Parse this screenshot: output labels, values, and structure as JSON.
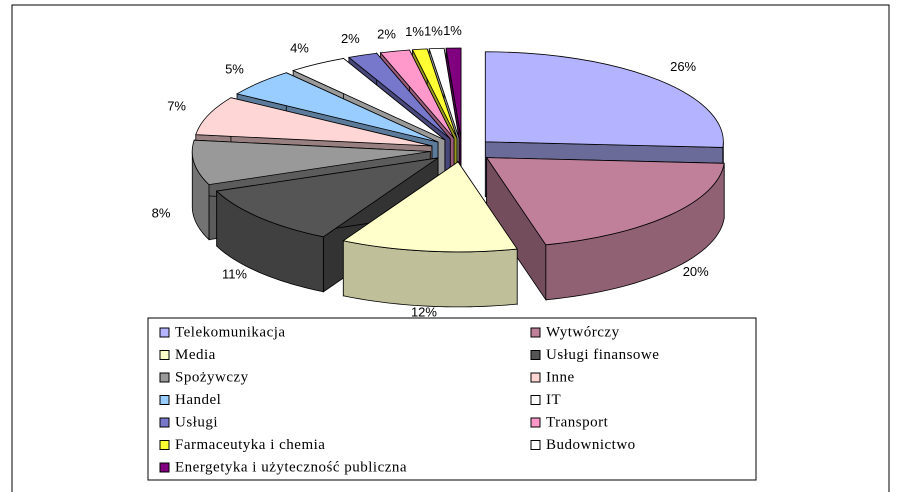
{
  "chart_data": {
    "type": "pie3d",
    "categories": [
      "Telekomunikacja",
      "Wytwórczy",
      "Media",
      "Usługi finansowe",
      "Spożywczy",
      "Inne",
      "Handel",
      "IT",
      "Usługi",
      "Transport",
      "Farmaceutyka i chemia",
      "Budownictwo",
      "Energetyka i użyteczność publiczna"
    ],
    "values": [
      26,
      20,
      12,
      11,
      8,
      7,
      5,
      4,
      2,
      2,
      1,
      1,
      1
    ],
    "value_labels": [
      "26%",
      "20%",
      "12%",
      "11%",
      "8%",
      "7%",
      "5%",
      "4%",
      "2%",
      "2%",
      "1%",
      "1%",
      "1%"
    ],
    "colors": [
      "#b3b3ff",
      "#c08099",
      "#ffffcc",
      "#555555",
      "#999999",
      "#ffd6d6",
      "#99ccff",
      "#ffffff",
      "#7777cc",
      "#ff99cc",
      "#ffff33",
      "#ffffff",
      "#800080"
    ],
    "legend": "bottom"
  }
}
